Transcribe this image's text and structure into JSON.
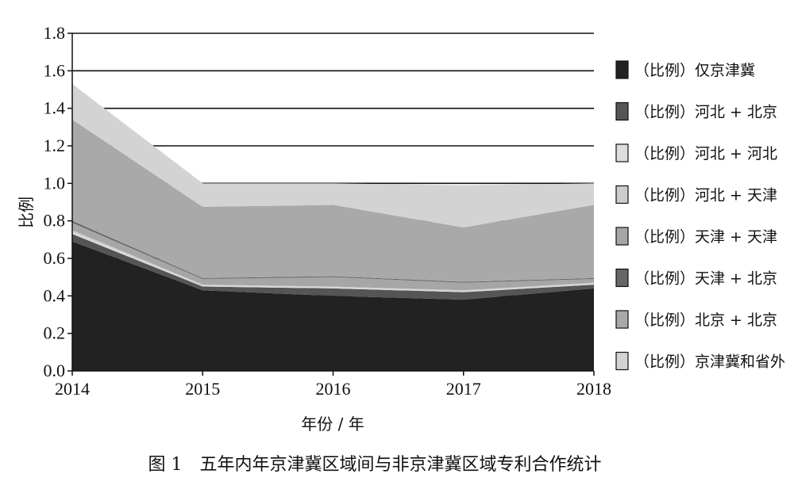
{
  "chart_data": {
    "type": "area",
    "stacked": true,
    "x": [
      2014,
      2015,
      2016,
      2017,
      2018
    ],
    "x_ticks": [
      "2014",
      "2015",
      "2016",
      "2017",
      "2018"
    ],
    "y_ticks": [
      "0.0",
      "0.2",
      "0.4",
      "0.6",
      "0.8",
      "1.0",
      "1.2",
      "1.4",
      "1.6",
      "1.8"
    ],
    "ylim": [
      0,
      1.8
    ],
    "xlabel": "年份 / 年",
    "ylabel": "比例",
    "grid": "horizontal",
    "legend_position": "right",
    "series": [
      {
        "name": "（比例）仅京津冀",
        "color": "#222222",
        "values": [
          0.69,
          0.43,
          0.4,
          0.38,
          0.44
        ]
      },
      {
        "name": "（比例）河北 + 北京",
        "color": "#555555",
        "values": [
          0.04,
          0.02,
          0.04,
          0.04,
          0.02
        ]
      },
      {
        "name": "（比例）河北 + 河北",
        "color": "#dddddd",
        "values": [
          0.01,
          0.005,
          0.005,
          0.005,
          0.005
        ]
      },
      {
        "name": "（比例）河北 + 天津",
        "color": "#cccccc",
        "values": [
          0.01,
          0.005,
          0.005,
          0.005,
          0.005
        ]
      },
      {
        "name": "（比例）天津 + 天津",
        "color": "#a6a6a6",
        "values": [
          0.04,
          0.03,
          0.05,
          0.04,
          0.02
        ]
      },
      {
        "name": "（比例）天津 + 北京",
        "color": "#666666",
        "values": [
          0.01,
          0.005,
          0.005,
          0.005,
          0.005
        ]
      },
      {
        "name": "（比例）北京 + 北京",
        "color": "#a9a9a9",
        "values": [
          0.54,
          0.38,
          0.38,
          0.29,
          0.39
        ]
      },
      {
        "name": "（比例）京津冀和省外",
        "color": "#d3d3d3",
        "values": [
          0.19,
          0.125,
          0.115,
          0.225,
          0.115
        ]
      }
    ]
  },
  "caption": "图 1　五年内年京津冀区域间与非京津冀区域专利合作统计"
}
